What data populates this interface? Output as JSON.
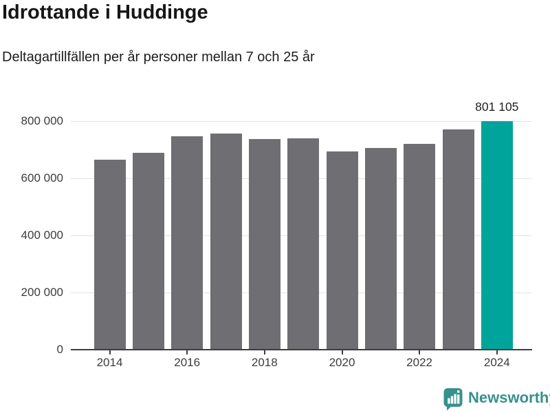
{
  "header": {
    "title": "Idrottande i Huddinge",
    "subtitle": "Deltagartillfällen per år personer mellan 7 och 25 år"
  },
  "chart_data": {
    "type": "bar",
    "title": "Idrottande i Huddinge",
    "subtitle": "Deltagartillfällen per år personer mellan 7 och 25 år",
    "categories": [
      2014,
      2015,
      2016,
      2017,
      2018,
      2019,
      2020,
      2021,
      2022,
      2023,
      2024
    ],
    "values": [
      665000,
      690000,
      746000,
      756000,
      738000,
      741000,
      695000,
      705000,
      721000,
      770000,
      801105
    ],
    "highlight_index": 10,
    "annotation": {
      "text": "801 105",
      "for_category": 2024
    },
    "xlabel": "",
    "ylabel": "",
    "ylim": [
      0,
      830000
    ],
    "yticks": [
      {
        "value": 0,
        "label": "0"
      },
      {
        "value": 200000,
        "label": "200 000"
      },
      {
        "value": 400000,
        "label": "400 000"
      },
      {
        "value": 600000,
        "label": "600 000"
      },
      {
        "value": 800000,
        "label": "800 000"
      }
    ],
    "xticks": [
      {
        "value": 2014,
        "label": "2014"
      },
      {
        "value": 2016,
        "label": "2016"
      },
      {
        "value": 2018,
        "label": "2018"
      },
      {
        "value": 2020,
        "label": "2020"
      },
      {
        "value": 2022,
        "label": "2022"
      },
      {
        "value": 2024,
        "label": "2024"
      }
    ],
    "grid": true,
    "legend": false,
    "colors": {
      "bar": "#6e6e73",
      "highlight": "#00a49a",
      "gridline": "#e2e2e2",
      "axis": "#3d3d3d",
      "tick_text": "#3c3c3c",
      "annotation_text": "#1f1f1f"
    }
  },
  "footer": {
    "brand": "Newsworthy",
    "brand_color": "#37918b",
    "logo_icon": "newsworthy-speech-bubble-bar-chart-icon"
  }
}
